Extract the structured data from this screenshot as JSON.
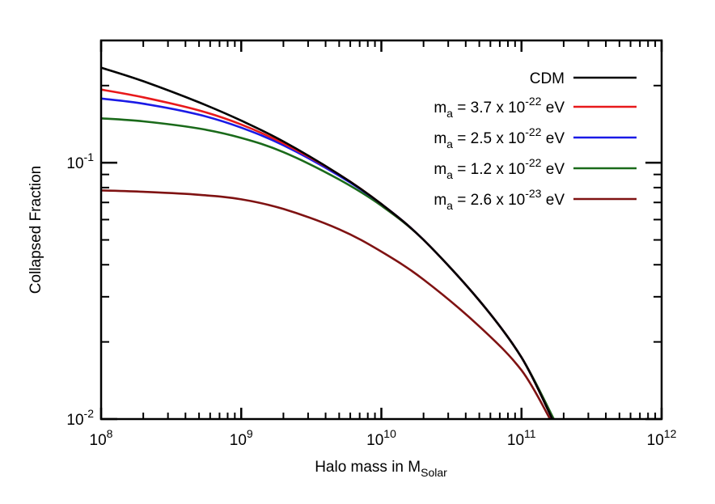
{
  "chart_data": {
    "type": "line",
    "title": "",
    "xlabel": {
      "main": "Halo mass in M",
      "sub": "Solar"
    },
    "ylabel": "Collapsed Fraction",
    "xscale": "log",
    "yscale": "log",
    "xlim": [
      100000000.0,
      1000000000000.0
    ],
    "ylim": [
      0.01,
      0.3
    ],
    "grid": false,
    "legend": "top-right",
    "x_ticks": [
      {
        "value": 100000000.0,
        "base": "10",
        "exp": "8"
      },
      {
        "value": 1000000000.0,
        "base": "10",
        "exp": "9"
      },
      {
        "value": 10000000000.0,
        "base": "10",
        "exp": "10"
      },
      {
        "value": 100000000000.0,
        "base": "10",
        "exp": "11"
      },
      {
        "value": 1000000000000.0,
        "base": "10",
        "exp": "12"
      }
    ],
    "y_ticks": [
      {
        "value": 0.01,
        "base": "10",
        "exp": "-2"
      },
      {
        "value": 0.1,
        "base": "10",
        "exp": "-1"
      }
    ],
    "series": [
      {
        "name": "CDM",
        "legend": {
          "pre": "CDM",
          "sub": "",
          "mid": "",
          "exp": "",
          "post": ""
        },
        "color": "#000000",
        "x": [
          100000000.0,
          200000000.0,
          500000000.0,
          1000000000.0,
          2000000000.0,
          5000000000.0,
          10000000000.0,
          20000000000.0,
          50000000000.0,
          100000000000.0,
          166000000000.0
        ],
        "y": [
          0.235,
          0.208,
          0.172,
          0.146,
          0.121,
          0.09,
          0.069,
          0.05,
          0.029,
          0.0174,
          0.01
        ]
      },
      {
        "name": "m_a = 3.7 x 10^-22 eV",
        "legend": {
          "pre": "m",
          "sub": "a",
          "mid": " = 3.7 x 10",
          "exp": "-22",
          "post": " eV"
        },
        "color": "#e8191b",
        "x": [
          100000000.0,
          200000000.0,
          500000000.0,
          1000000000.0,
          2000000000.0,
          5000000000.0,
          10000000000.0,
          20000000000.0,
          50000000000.0,
          100000000000.0,
          166000000000.0
        ],
        "y": [
          0.193,
          0.18,
          0.16,
          0.141,
          0.119,
          0.09,
          0.069,
          0.05,
          0.029,
          0.0174,
          0.01
        ]
      },
      {
        "name": "m_a = 2.5 x 10^-22 eV",
        "legend": {
          "pre": "m",
          "sub": "a",
          "mid": " = 2.5 x 10",
          "exp": "-22",
          "post": " eV"
        },
        "color": "#1a1ae6",
        "x": [
          100000000.0,
          200000000.0,
          500000000.0,
          1000000000.0,
          2000000000.0,
          5000000000.0,
          10000000000.0,
          20000000000.0,
          50000000000.0,
          100000000000.0,
          166000000000.0
        ],
        "y": [
          0.178,
          0.17,
          0.154,
          0.137,
          0.117,
          0.089,
          0.069,
          0.05,
          0.029,
          0.0174,
          0.01
        ]
      },
      {
        "name": "m_a = 1.2 x 10^-22 eV",
        "legend": {
          "pre": "m",
          "sub": "a",
          "mid": " = 1.2 x 10",
          "exp": "-22",
          "post": " eV"
        },
        "color": "#1a6a1a",
        "x": [
          100000000.0,
          200000000.0,
          500000000.0,
          1000000000.0,
          2000000000.0,
          5000000000.0,
          10000000000.0,
          20000000000.0,
          50000000000.0,
          100000000000.0,
          170000000000.0
        ],
        "y": [
          0.149,
          0.145,
          0.136,
          0.125,
          0.11,
          0.086,
          0.068,
          0.05,
          0.029,
          0.0174,
          0.01
        ]
      },
      {
        "name": "m_a = 2.6 x 10^-23 eV",
        "legend": {
          "pre": "m",
          "sub": "a",
          "mid": " = 2.6 x 10",
          "exp": "-23",
          "post": " eV"
        },
        "color": "#7f1212",
        "x": [
          100000000.0,
          200000000.0,
          500000000.0,
          1000000000.0,
          2000000000.0,
          5000000000.0,
          10000000000.0,
          20000000000.0,
          50000000000.0,
          100000000000.0,
          160000000000.0
        ],
        "y": [
          0.078,
          0.077,
          0.075,
          0.072,
          0.066,
          0.055,
          0.045,
          0.035,
          0.023,
          0.0155,
          0.01
        ]
      }
    ]
  }
}
